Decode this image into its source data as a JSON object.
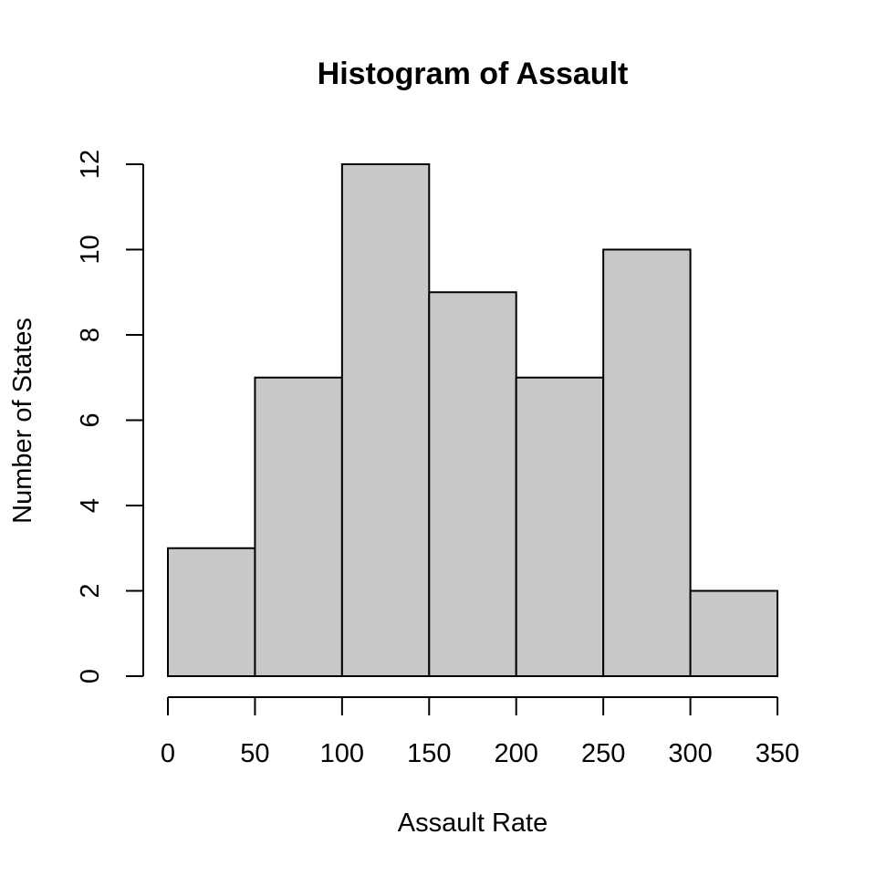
{
  "chart_data": {
    "type": "bar",
    "title": "Histogram of Assault",
    "xlabel": "Assault Rate",
    "ylabel": "Number of States",
    "bin_edges": [
      0,
      50,
      100,
      150,
      200,
      250,
      300,
      350
    ],
    "values": [
      3,
      7,
      12,
      9,
      7,
      10,
      2
    ],
    "xlim": [
      0,
      350
    ],
    "ylim": [
      0,
      12
    ],
    "x_ticks": [
      0,
      50,
      100,
      150,
      200,
      250,
      300,
      350
    ],
    "y_ticks": [
      0,
      2,
      4,
      6,
      8,
      10,
      12
    ],
    "grid": false,
    "colors": {
      "bar_fill": "#c8c8c8",
      "bar_stroke": "#000000"
    }
  }
}
